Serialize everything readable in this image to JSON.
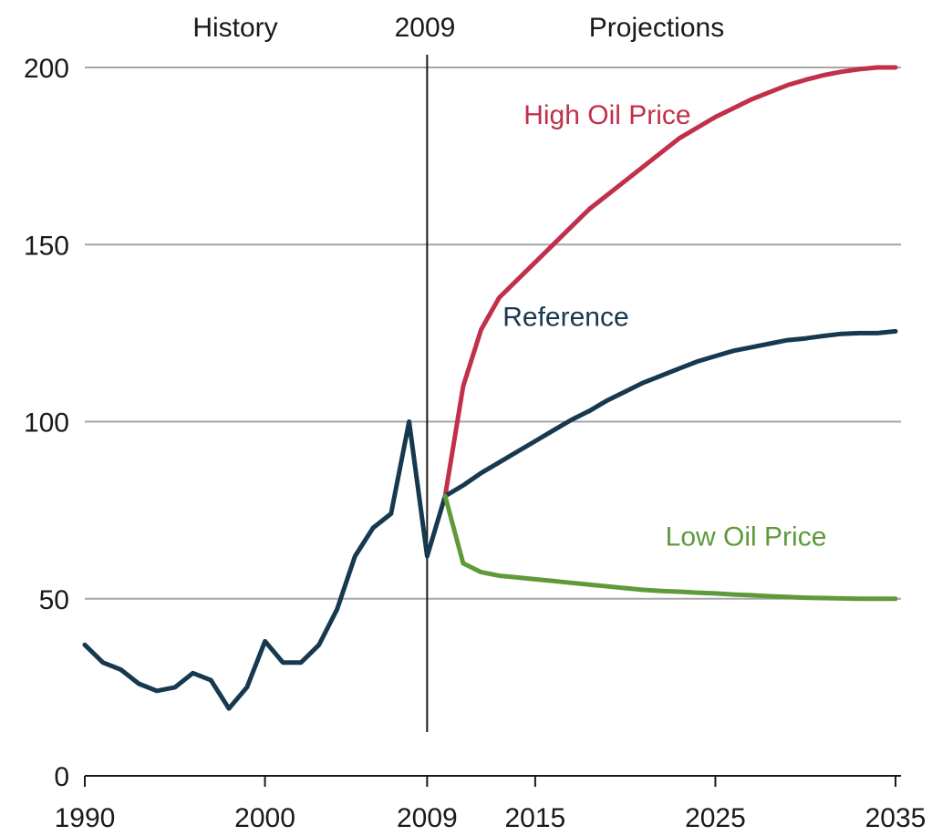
{
  "header": {
    "history_label": "History",
    "split_label": "2009",
    "projections_label": "Projections"
  },
  "chart_data": {
    "type": "line",
    "title": "",
    "xlabel": "",
    "ylabel": "",
    "xlim": [
      1990,
      2035
    ],
    "ylim": [
      0,
      200
    ],
    "yticks": [
      0,
      50,
      100,
      150,
      200
    ],
    "xticks": [
      1990,
      2000,
      2009,
      2015,
      2025,
      2035
    ],
    "ygrid": true,
    "divider_year": 2009,
    "series": [
      {
        "name": "High Oil Price",
        "color": "#c0304a",
        "x": [
          2010,
          2011,
          2012,
          2013,
          2014,
          2015,
          2016,
          2017,
          2018,
          2019,
          2020,
          2021,
          2022,
          2023,
          2024,
          2025,
          2026,
          2027,
          2028,
          2029,
          2030,
          2031,
          2032,
          2033,
          2034,
          2035
        ],
        "y": [
          79,
          110,
          126,
          135,
          140,
          145,
          150,
          155,
          160,
          164,
          168,
          172,
          176,
          180,
          183,
          186,
          188.5,
          191,
          193,
          195,
          196.5,
          197.8,
          198.8,
          199.5,
          200,
          200
        ]
      },
      {
        "name": "Reference",
        "color": "#16394f",
        "x": [
          1990,
          1991,
          1992,
          1993,
          1994,
          1995,
          1996,
          1997,
          1998,
          1999,
          2000,
          2001,
          2002,
          2003,
          2004,
          2005,
          2006,
          2007,
          2008,
          2009,
          2010,
          2011,
          2012,
          2013,
          2014,
          2015,
          2016,
          2017,
          2018,
          2019,
          2020,
          2021,
          2022,
          2023,
          2024,
          2025,
          2026,
          2027,
          2028,
          2029,
          2030,
          2031,
          2032,
          2033,
          2034,
          2035
        ],
        "y": [
          37,
          32,
          30,
          26,
          24,
          25,
          29,
          27,
          19,
          25,
          38,
          32,
          32,
          37,
          47,
          62,
          70,
          74,
          100,
          62,
          79,
          82,
          85.5,
          88.5,
          91.5,
          94.5,
          97.5,
          100.5,
          103,
          106,
          108.5,
          111,
          113,
          115,
          117,
          118.5,
          120,
          121,
          122,
          123,
          123.5,
          124.2,
          124.8,
          125,
          125,
          125.5
        ]
      },
      {
        "name": "Low Oil Price",
        "color": "#5e9a3a",
        "x": [
          2010,
          2011,
          2012,
          2013,
          2014,
          2015,
          2016,
          2017,
          2018,
          2019,
          2020,
          2021,
          2022,
          2023,
          2024,
          2025,
          2026,
          2027,
          2028,
          2029,
          2030,
          2031,
          2032,
          2033,
          2034,
          2035
        ],
        "y": [
          79,
          60,
          57.5,
          56.5,
          56,
          55.5,
          55,
          54.5,
          54,
          53.5,
          53,
          52.5,
          52.2,
          52,
          51.7,
          51.5,
          51.2,
          51,
          50.7,
          50.5,
          50.3,
          50.2,
          50.1,
          50,
          50,
          50
        ]
      }
    ]
  }
}
